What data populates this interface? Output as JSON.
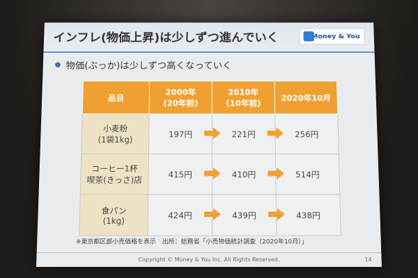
{
  "header": {
    "title": "インフレ(物価上昇)は少しずつ進んでいく",
    "logo": "Money & You"
  },
  "bullet": "物価(ぶっか)は少しずつ高くなっていく",
  "table": {
    "header": [
      [
        "品目"
      ],
      [
        "2000年",
        "(20年前)"
      ],
      [
        "2010年",
        "(10年前)"
      ],
      [
        "2020年10月"
      ]
    ],
    "rows": [
      [
        [
          "小麦粉",
          "(1袋1kg)"
        ],
        "197円",
        "221円",
        "256円"
      ],
      [
        [
          "コーヒー1杯",
          "喫茶(きっさ)店"
        ],
        "415円",
        "410円",
        "514円"
      ],
      [
        [
          "食パン",
          "(1kg)"
        ],
        "424円",
        "439円",
        "438円"
      ]
    ]
  },
  "note": "※東京都区部小売価格を表示　出所：総務省「小売物価統計調査（2020年10月）」",
  "footer": {
    "copyright": "Copyright © Money & You Inc. All Rights Reserved.",
    "page": "14"
  }
}
